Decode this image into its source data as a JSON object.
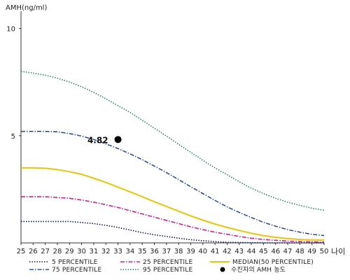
{
  "chart_data": {
    "type": "line",
    "ylabel": "AMH(ng/ml)",
    "xlabel": "나이",
    "xlim": [
      25,
      50
    ],
    "ylim": [
      0,
      11
    ],
    "x_ticks": [
      25,
      26,
      27,
      28,
      29,
      30,
      31,
      32,
      33,
      34,
      35,
      36,
      37,
      38,
      39,
      40,
      41,
      42,
      43,
      44,
      45,
      46,
      47,
      48,
      49,
      50
    ],
    "y_ticks": [
      5,
      10
    ],
    "grid": false,
    "legend_position": "bottom",
    "series": [
      {
        "name": "5 PERCENTILE",
        "color": "#0a1a5c",
        "style": "dot",
        "x": [
          25,
          26,
          27,
          28,
          29,
          30,
          31,
          32,
          33,
          34,
          35,
          36,
          37,
          38,
          39,
          40,
          41,
          42,
          43,
          44,
          45,
          46,
          47,
          48,
          49,
          50
        ],
        "y": [
          1.0,
          1.0,
          1.0,
          1.0,
          1.0,
          0.95,
          0.9,
          0.82,
          0.72,
          0.6,
          0.48,
          0.38,
          0.3,
          0.22,
          0.15,
          0.1,
          0.06,
          0.03,
          0.02,
          0.01,
          0.0,
          0.0,
          0.0,
          0.0,
          0.0,
          0.0
        ]
      },
      {
        "name": "25 PERCENTILE",
        "color": "#e0188a",
        "style": "dashdot",
        "x": [
          25,
          26,
          27,
          28,
          29,
          30,
          31,
          32,
          33,
          34,
          35,
          36,
          37,
          38,
          39,
          40,
          41,
          42,
          43,
          44,
          45,
          46,
          47,
          48,
          49,
          50
        ],
        "y": [
          2.15,
          2.15,
          2.15,
          2.12,
          2.08,
          2.0,
          1.9,
          1.78,
          1.65,
          1.5,
          1.35,
          1.2,
          1.05,
          0.9,
          0.75,
          0.62,
          0.5,
          0.4,
          0.3,
          0.22,
          0.16,
          0.12,
          0.08,
          0.06,
          0.05,
          0.04
        ]
      },
      {
        "name": "MEDIAN(50 PERCENTILE)",
        "color": "#f2c200",
        "style": "solid",
        "x": [
          25,
          26,
          27,
          28,
          29,
          30,
          31,
          32,
          33,
          34,
          35,
          36,
          37,
          38,
          39,
          40,
          41,
          42,
          43,
          44,
          45,
          46,
          47,
          48,
          49,
          50
        ],
        "y": [
          3.5,
          3.5,
          3.48,
          3.42,
          3.32,
          3.2,
          3.02,
          2.82,
          2.6,
          2.38,
          2.15,
          1.92,
          1.7,
          1.48,
          1.26,
          1.06,
          0.88,
          0.72,
          0.58,
          0.45,
          0.34,
          0.26,
          0.2,
          0.16,
          0.14,
          0.13
        ]
      },
      {
        "name": "75 PERCENTILE",
        "color": "#2e4fa8",
        "style": "dashdot",
        "x": [
          25,
          26,
          27,
          28,
          29,
          30,
          31,
          32,
          33,
          34,
          35,
          36,
          37,
          38,
          39,
          40,
          41,
          42,
          43,
          44,
          45,
          46,
          47,
          48,
          49,
          50
        ],
        "y": [
          5.2,
          5.2,
          5.2,
          5.18,
          5.1,
          4.98,
          4.82,
          4.62,
          4.4,
          4.15,
          3.88,
          3.58,
          3.28,
          2.95,
          2.62,
          2.3,
          1.98,
          1.68,
          1.42,
          1.18,
          0.96,
          0.78,
          0.62,
          0.5,
          0.4,
          0.34
        ]
      },
      {
        "name": "95 PERCENTILE",
        "color": "#2a8a5a",
        "style": "dot",
        "x": [
          25,
          26,
          27,
          28,
          29,
          30,
          31,
          32,
          33,
          34,
          35,
          36,
          37,
          38,
          39,
          40,
          41,
          42,
          43,
          44,
          45,
          46,
          47,
          48,
          49,
          50
        ],
        "y": [
          8.0,
          7.92,
          7.82,
          7.68,
          7.5,
          7.28,
          7.02,
          6.72,
          6.4,
          6.08,
          5.72,
          5.35,
          4.98,
          4.6,
          4.22,
          3.85,
          3.5,
          3.18,
          2.85,
          2.55,
          2.3,
          2.08,
          1.9,
          1.75,
          1.62,
          1.52
        ]
      }
    ],
    "point": {
      "name": "수진자의 AMH 농도",
      "x": 33,
      "y": 4.82,
      "label": "4.82",
      "color": "#000000"
    }
  }
}
